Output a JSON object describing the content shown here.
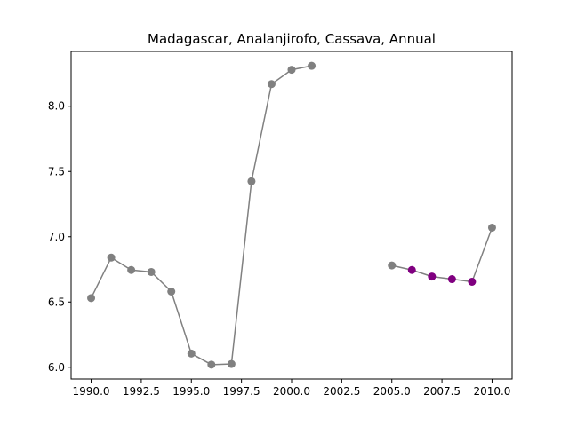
{
  "chart_data": {
    "type": "line",
    "title": "Madagascar, Analanjirofo, Cassava, Annual",
    "xlabel": "",
    "ylabel": "",
    "xlim": [
      1989.0,
      2011.0
    ],
    "ylim": [
      5.91,
      8.42
    ],
    "x_ticks": [
      1990.0,
      1992.5,
      1995.0,
      1997.5,
      2000.0,
      2002.5,
      2005.0,
      2007.5,
      2010.0
    ],
    "x_tick_labels": [
      "1990.0",
      "1992.5",
      "1995.0",
      "1997.5",
      "2000.0",
      "2002.5",
      "2005.0",
      "2007.5",
      "2010.0"
    ],
    "y_ticks": [
      6.0,
      6.5,
      7.0,
      7.5,
      8.0
    ],
    "y_tick_labels": [
      "6.0",
      "6.5",
      "7.0",
      "7.5",
      "8.0"
    ],
    "grid": false,
    "line_color": "#808080",
    "segments": [
      {
        "x": [
          1990,
          1991,
          1992,
          1993,
          1994,
          1995,
          1996,
          1997,
          1998,
          1999,
          2000,
          2001
        ],
        "y": [
          6.53,
          6.84,
          6.745,
          6.73,
          6.58,
          6.105,
          6.02,
          6.025,
          7.425,
          8.17,
          8.28,
          8.31
        ]
      },
      {
        "x": [
          2005,
          2006,
          2007,
          2008,
          2009,
          2010
        ],
        "y": [
          6.78,
          6.745,
          6.695,
          6.675,
          6.655,
          7.07
        ]
      }
    ],
    "marker_colors": {
      "default": "#808080",
      "highlight": "#800080"
    },
    "highlighted_x": [
      2006,
      2007,
      2008,
      2009
    ]
  }
}
